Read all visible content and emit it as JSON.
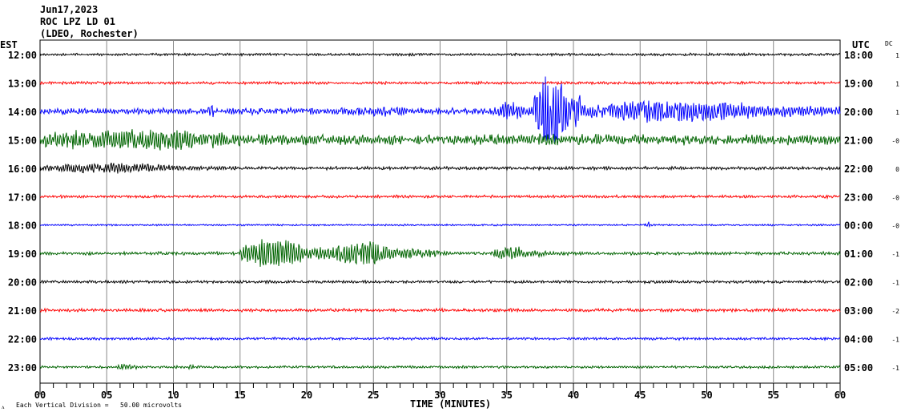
{
  "chart_data": {
    "type": "line",
    "title_lines": [
      "Jun17,2023",
      "ROC LPZ LD 01",
      "(LDEO, Rochester)"
    ],
    "left_axis_label": "EST",
    "right_axis_label": "UTC",
    "dc_label": "DC",
    "xlabel": "TIME (MINUTES)",
    "xlim": [
      0,
      60
    ],
    "x_ticks": [
      "00",
      "05",
      "10",
      "15",
      "20",
      "25",
      "30",
      "35",
      "40",
      "45",
      "50",
      "55",
      "60"
    ],
    "footer": "Each Vertical Division =   50.00 microvolts",
    "footer_mark": "ᴧ",
    "grid": true,
    "rows": [
      {
        "est": "12:00",
        "utc": "18:00",
        "dc": "1",
        "color": "#000000",
        "noise": 1.2,
        "events": []
      },
      {
        "est": "13:00",
        "utc": "19:00",
        "dc": "1",
        "color": "#ff0000",
        "noise": 1.3,
        "events": []
      },
      {
        "est": "14:00",
        "utc": "20:00",
        "dc": "1",
        "color": "#0000ff",
        "noise": 3,
        "events": [
          [
            12.6,
            13.2,
            10
          ],
          [
            20,
            34,
            5
          ],
          [
            34,
            37,
            12
          ],
          [
            37,
            40.5,
            50
          ],
          [
            40.5,
            60,
            14
          ]
        ]
      },
      {
        "est": "15:00",
        "utc": "21:00",
        "dc": "-0",
        "color": "#006400",
        "noise": 5,
        "events": [
          [
            0,
            21,
            13
          ],
          [
            37,
            40,
            8
          ]
        ]
      },
      {
        "est": "16:00",
        "utc": "22:00",
        "dc": "0",
        "color": "#000000",
        "noise": 1.5,
        "events": [
          [
            0,
            15,
            6
          ]
        ]
      },
      {
        "est": "17:00",
        "utc": "23:00",
        "dc": "-0",
        "color": "#ff0000",
        "noise": 1.3,
        "events": []
      },
      {
        "est": "18:00",
        "utc": "00:00",
        "dc": "-0",
        "color": "#0000ff",
        "noise": 0.8,
        "events": [
          [
            45.4,
            45.9,
            4
          ]
        ]
      },
      {
        "est": "19:00",
        "utc": "01:00",
        "dc": "-1",
        "color": "#006400",
        "noise": 1.5,
        "events": [
          [
            15,
            22,
            18
          ],
          [
            22,
            28,
            16
          ],
          [
            28,
            31,
            6
          ],
          [
            34,
            38,
            8
          ]
        ]
      },
      {
        "est": "20:00",
        "utc": "02:00",
        "dc": "-1",
        "color": "#000000",
        "noise": 1.3,
        "events": []
      },
      {
        "est": "21:00",
        "utc": "03:00",
        "dc": "-2",
        "color": "#ff0000",
        "noise": 1.5,
        "events": []
      },
      {
        "est": "22:00",
        "utc": "04:00",
        "dc": "-1",
        "color": "#0000ff",
        "noise": 1.2,
        "events": []
      },
      {
        "est": "23:00",
        "utc": "05:00",
        "dc": "-1",
        "color": "#006400",
        "noise": 1.2,
        "events": [
          [
            5.8,
            7.5,
            4
          ],
          [
            11,
            11.8,
            3
          ]
        ]
      }
    ]
  }
}
